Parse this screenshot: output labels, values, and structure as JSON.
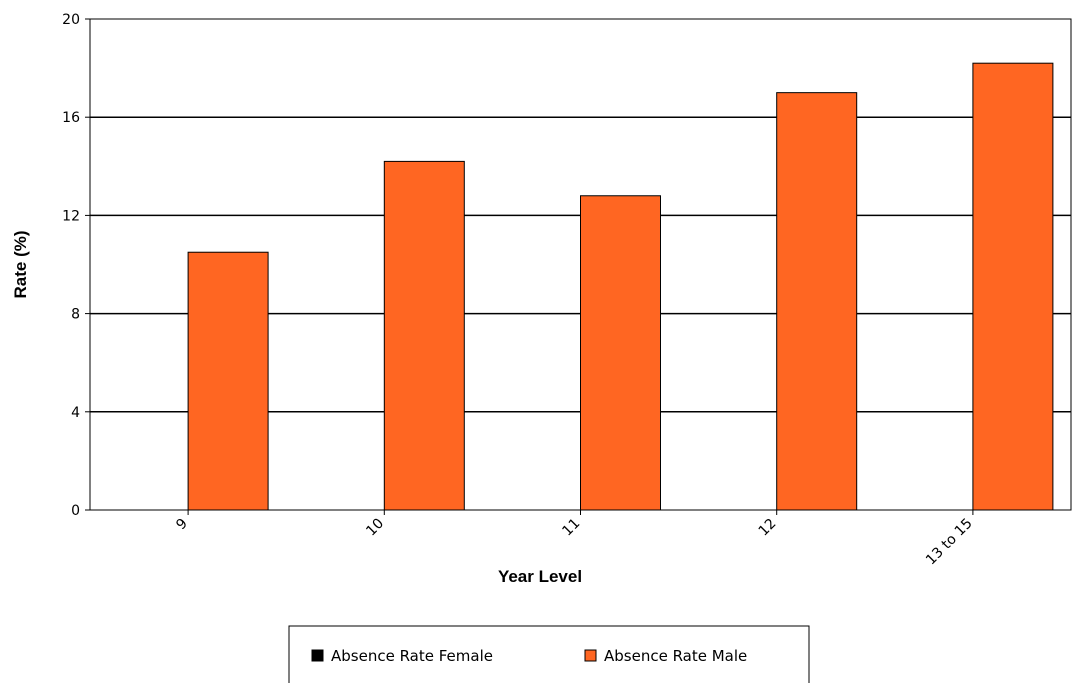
{
  "chart_data": {
    "type": "bar",
    "categories": [
      "9",
      "10",
      "11",
      "12",
      "13 to 15"
    ],
    "series": [
      {
        "name": "Absence Rate Female",
        "values": [
          0,
          0,
          0,
          0,
          0
        ],
        "color": "#000000"
      },
      {
        "name": "Absence Rate Male",
        "values": [
          10.5,
          14.2,
          12.8,
          17.0,
          18.2
        ],
        "color": "#ff6622"
      }
    ],
    "xlabel": "Year Level",
    "ylabel": "Rate (%)",
    "ylim": [
      0,
      20
    ],
    "yticks": [
      "0",
      "4",
      "8",
      "12",
      "16",
      "20"
    ],
    "grid": true,
    "legend_position": "bottom"
  }
}
